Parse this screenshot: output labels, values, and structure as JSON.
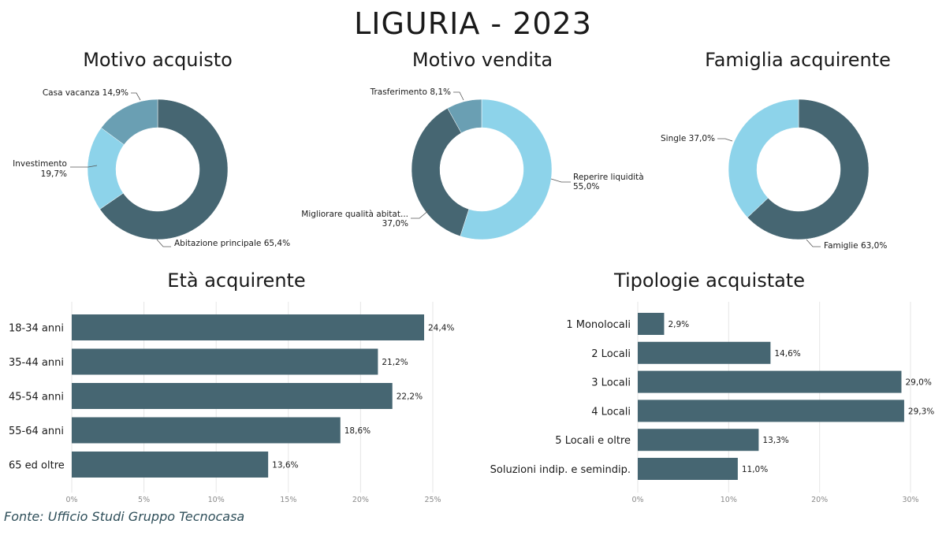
{
  "title": "LIGURIA - 2023",
  "source": "Fonte: Ufficio Studi Gruppo Tecnocasa",
  "colors": {
    "dark": "#466672",
    "light": "#8dd3ea",
    "mid": "#6a9fb3"
  },
  "chart_data": [
    {
      "type": "pie",
      "title": "Motivo acquisto",
      "slices": [
        {
          "label": "Abitazione principale",
          "value_label": "65,4%",
          "value": 65.4,
          "color": "#466672"
        },
        {
          "label": "Investimento",
          "value_label": "19,7%",
          "value": 19.7,
          "color": "#8dd3ea"
        },
        {
          "label": "Casa vacanza",
          "value_label": "14,9%",
          "value": 14.9,
          "color": "#6a9fb3"
        }
      ]
    },
    {
      "type": "pie",
      "title": "Motivo vendita",
      "slices": [
        {
          "label": "Reperire liquidità",
          "value_label": "55,0%",
          "value": 55.0,
          "color": "#8dd3ea"
        },
        {
          "label": "Migliorare qualità abitat...",
          "value_label": "37,0%",
          "value": 37.0,
          "color": "#466672"
        },
        {
          "label": "Trasferimento",
          "value_label": "8,1%",
          "value": 8.1,
          "color": "#6a9fb3"
        }
      ]
    },
    {
      "type": "pie",
      "title": "Famiglia acquirente",
      "slices": [
        {
          "label": "Famiglie",
          "value_label": "63,0%",
          "value": 63.0,
          "color": "#466672"
        },
        {
          "label": "Single",
          "value_label": "37,0%",
          "value": 37.0,
          "color": "#8dd3ea"
        }
      ]
    },
    {
      "type": "bar",
      "orientation": "horizontal",
      "title": "Età acquirente",
      "categories": [
        "18-34 anni",
        "35-44 anni",
        "45-54 anni",
        "55-64 anni",
        "65 ed oltre"
      ],
      "values": [
        24.4,
        21.2,
        22.2,
        18.6,
        13.6
      ],
      "value_labels": [
        "24,4%",
        "21,2%",
        "22,2%",
        "18,6%",
        "13,6%"
      ],
      "ticks": [
        "0%",
        "5%",
        "10%",
        "15%",
        "20%",
        "25%"
      ],
      "xlim": [
        0,
        25
      ],
      "grid": true
    },
    {
      "type": "bar",
      "orientation": "horizontal",
      "title": "Tipologie acquistate",
      "categories": [
        "1 Monolocali",
        "2 Locali",
        "3 Locali",
        "4 Locali",
        "5 Locali e oltre",
        "Soluzioni indip. e semindip."
      ],
      "values": [
        2.9,
        14.6,
        29.0,
        29.3,
        13.3,
        11.0
      ],
      "value_labels": [
        "2,9%",
        "14,6%",
        "29,0%",
        "29,3%",
        "13,3%",
        "11,0%"
      ],
      "ticks": [
        "0%",
        "10%",
        "20%",
        "30%"
      ],
      "xlim": [
        0,
        30
      ],
      "grid": true
    }
  ]
}
